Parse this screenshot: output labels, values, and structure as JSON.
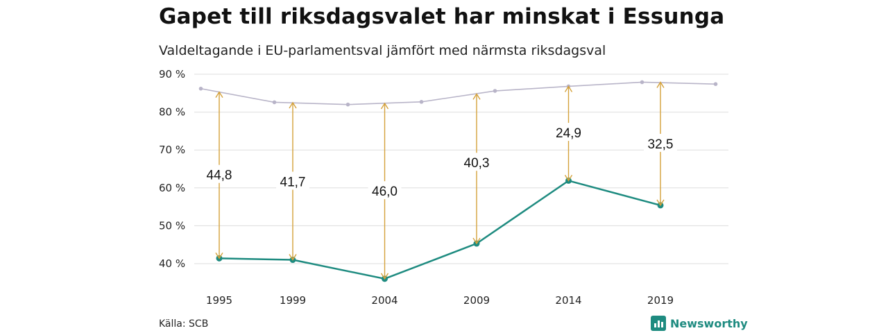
{
  "title": "Gapet till riksdagsvalet har minskat i Essunga",
  "subtitle": "Valdeltagande i EU-parlamentsval jämfört med närmsta riksdagsval",
  "source": "Källa: SCB",
  "brand": {
    "name": "Newsworthy",
    "icon": "newsworthy-logo-icon",
    "color": "#1e8b80"
  },
  "chart_data": {
    "type": "line",
    "x_ticks": [
      "1995",
      "1999",
      "2004",
      "2009",
      "2014",
      "2019"
    ],
    "y_ticks": [
      "90 %",
      "80 %",
      "70 %",
      "60 %",
      "50 %",
      "40 %"
    ],
    "ylim": [
      35,
      90
    ],
    "grid": true,
    "series": [
      {
        "color": "#b8b4c8",
        "points": [
          {
            "year": 1994,
            "value": 86.2
          },
          {
            "year": 1998,
            "value": 82.6
          },
          {
            "year": 2002,
            "value": 82.0
          },
          {
            "year": 2006,
            "value": 82.7
          },
          {
            "year": 2010,
            "value": 85.6
          },
          {
            "year": 2014,
            "value": 86.8
          },
          {
            "year": 2018,
            "value": 87.9
          },
          {
            "year": 2022,
            "value": 87.4
          }
        ]
      },
      {
        "color": "#1e8b80",
        "points": [
          {
            "year": 1995,
            "value": 41.4
          },
          {
            "year": 1999,
            "value": 41.0
          },
          {
            "year": 2004,
            "value": 36.0
          },
          {
            "year": 2009,
            "value": 45.3
          },
          {
            "year": 2014,
            "value": 61.9
          },
          {
            "year": 2019,
            "value": 55.4
          }
        ]
      }
    ],
    "gaps": [
      {
        "year": 1995,
        "from": 85.3,
        "to": 41.4,
        "label": "44,8",
        "label_value": 63.5
      },
      {
        "year": 1999,
        "from": 82.5,
        "to": 41.0,
        "label": "41,7",
        "label_value": 61.7
      },
      {
        "year": 2004,
        "from": 82.3,
        "to": 36.0,
        "label": "46,0",
        "label_value": 59.2
      },
      {
        "year": 2009,
        "from": 84.8,
        "to": 45.3,
        "label": "40,3",
        "label_value": 66.7
      },
      {
        "year": 2014,
        "from": 86.8,
        "to": 61.9,
        "label": "24,9",
        "label_value": 74.6
      },
      {
        "year": 2019,
        "from": 87.9,
        "to": 55.4,
        "label": "32,5",
        "label_value": 71.7
      }
    ],
    "gap_color": "#d4a13a"
  }
}
